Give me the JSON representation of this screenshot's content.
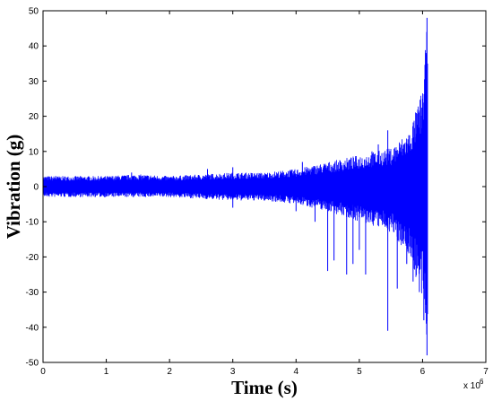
{
  "chart_data": {
    "type": "line",
    "title": "",
    "xlabel": "Time (s)",
    "ylabel": "Vibration (g)",
    "x_multiplier_label": "x 10",
    "x_multiplier_exponent": "6",
    "xlim": [
      0,
      7
    ],
    "ylim": [
      -50,
      50
    ],
    "xticks": [
      0,
      1,
      2,
      3,
      4,
      5,
      6,
      7
    ],
    "yticks": [
      -50,
      -40,
      -30,
      -20,
      -10,
      0,
      10,
      20,
      30,
      40,
      50
    ],
    "grid": false,
    "series_color": "#0000ff",
    "envelope": [
      {
        "x": 0.0,
        "min": -3,
        "max": 3
      },
      {
        "x": 0.5,
        "min": -3,
        "max": 3
      },
      {
        "x": 1.0,
        "min": -3,
        "max": 3
      },
      {
        "x": 1.5,
        "min": -3,
        "max": 3.5
      },
      {
        "x": 2.0,
        "min": -3,
        "max": 3
      },
      {
        "x": 2.5,
        "min": -3.5,
        "max": 3.5
      },
      {
        "x": 3.0,
        "min": -4,
        "max": 4
      },
      {
        "x": 3.5,
        "min": -4,
        "max": 4
      },
      {
        "x": 4.0,
        "min": -5,
        "max": 5
      },
      {
        "x": 4.5,
        "min": -7,
        "max": 7
      },
      {
        "x": 5.0,
        "min": -10,
        "max": 9
      },
      {
        "x": 5.5,
        "min": -13,
        "max": 11
      },
      {
        "x": 5.8,
        "min": -20,
        "max": 16
      },
      {
        "x": 6.0,
        "min": -33,
        "max": 28
      },
      {
        "x": 6.08,
        "min": -48,
        "max": 48
      }
    ],
    "spikes": [
      {
        "x": 0.2,
        "y": 3
      },
      {
        "x": 1.4,
        "y": 4
      },
      {
        "x": 2.6,
        "y": 5
      },
      {
        "x": 3.0,
        "y": 5.5
      },
      {
        "x": 3.0,
        "y": -6
      },
      {
        "x": 3.5,
        "y": -4
      },
      {
        "x": 4.0,
        "y": -7
      },
      {
        "x": 4.1,
        "y": 7
      },
      {
        "x": 4.3,
        "y": -10
      },
      {
        "x": 4.5,
        "y": -24
      },
      {
        "x": 4.6,
        "y": -21
      },
      {
        "x": 4.8,
        "y": -25
      },
      {
        "x": 4.9,
        "y": -22
      },
      {
        "x": 5.0,
        "y": -18
      },
      {
        "x": 5.1,
        "y": -25
      },
      {
        "x": 5.2,
        "y": 10
      },
      {
        "x": 5.3,
        "y": 12
      },
      {
        "x": 5.45,
        "y": -41
      },
      {
        "x": 5.45,
        "y": 16
      },
      {
        "x": 5.6,
        "y": -29
      },
      {
        "x": 5.65,
        "y": 10
      },
      {
        "x": 5.75,
        "y": -22
      },
      {
        "x": 5.85,
        "y": -27
      },
      {
        "x": 5.9,
        "y": 15
      },
      {
        "x": 5.95,
        "y": -30
      },
      {
        "x": 6.0,
        "y": 25
      },
      {
        "x": 6.02,
        "y": -38
      },
      {
        "x": 6.05,
        "y": 38
      },
      {
        "x": 6.07,
        "y": -48
      },
      {
        "x": 6.07,
        "y": 48
      }
    ],
    "end_x": 6.08
  }
}
